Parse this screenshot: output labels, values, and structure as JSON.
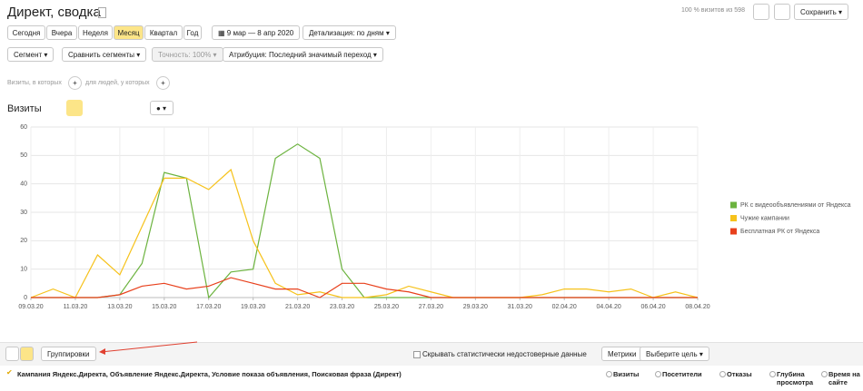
{
  "header": {
    "title": "Директ, сводка",
    "sample": "100 % визитов из 598",
    "save": "Сохранить"
  },
  "periods": [
    "Сегодня",
    "Вчера",
    "Неделя",
    "Месяц",
    "Квартал",
    "Год"
  ],
  "date_range": "9 мар — 8 апр 2020",
  "detail": "Детализация: по дням",
  "filters": {
    "segment": "Сегмент",
    "compare": "Сравнить сегменты",
    "accuracy": "Точность: 100%",
    "attribution": "Атрибуция: Последний значимый переход"
  },
  "conditions": [
    "Визиты, в которых",
    "для людей, у которых"
  ],
  "chart_heading": "Визиты",
  "chart_data": {
    "type": "line",
    "categories": [
      "09.03.20",
      null,
      "11.03.20",
      null,
      "13.03.20",
      null,
      "15.03.20",
      null,
      "17.03.20",
      null,
      "19.03.20",
      null,
      "21.03.20",
      null,
      "23.03.20",
      null,
      "25.03.20",
      null,
      "27.03.20",
      null,
      "29.03.20",
      null,
      "31.03.20",
      null,
      "02.04.20",
      null,
      "04.04.20",
      null,
      "06.04.20",
      null,
      "08.04.20"
    ],
    "label_colors": [
      "#555",
      null,
      "#555",
      null,
      "#555",
      null,
      "#e03030",
      null,
      "#555",
      null,
      "#555",
      null,
      "#e03030",
      null,
      "#555",
      null,
      "#555",
      null,
      "#555",
      null,
      "#e03030",
      null,
      "#555",
      null,
      "#555",
      null,
      "#e03030",
      null,
      "#555",
      null,
      "#555"
    ],
    "series": [
      {
        "name": "РК с видеообъявлениями от Яндекса",
        "color": "#6cb33f",
        "values": [
          0,
          0,
          0,
          0,
          1,
          12,
          44,
          42,
          0,
          9,
          10,
          49,
          54,
          49,
          10,
          0,
          0,
          0,
          0,
          0,
          0,
          0,
          0,
          0,
          0,
          0,
          0,
          0,
          0,
          0,
          0
        ]
      },
      {
        "name": "Чужие кампании",
        "color": "#f6c21b",
        "values": [
          0,
          3,
          0,
          15,
          8,
          25,
          42,
          42,
          38,
          45,
          20,
          5,
          1,
          2,
          0,
          0,
          1,
          4,
          2,
          0,
          0,
          0,
          0,
          1,
          3,
          3,
          2,
          3,
          0,
          2,
          0
        ]
      },
      {
        "name": "Бесплатная РК от Яндекса",
        "color": "#e8401c",
        "values": [
          0,
          0,
          0,
          0,
          1,
          4,
          5,
          3,
          4,
          7,
          5,
          3,
          3,
          0,
          5,
          5,
          3,
          2,
          0,
          0,
          0,
          0,
          0,
          0,
          0,
          0,
          0,
          0,
          0,
          0,
          0
        ]
      }
    ],
    "ylim": [
      0,
      60
    ],
    "yticks": [
      0,
      10,
      20,
      30,
      40,
      50,
      60
    ],
    "grid": true
  },
  "bottom": {
    "groupings": "Группировки",
    "hide": "Скрывать статистически недостоверные данные",
    "metrics": "Метрики",
    "goal": "Выберите цель"
  },
  "table": {
    "dimensions": "Кампания Яндекс.Директа, Объявление Яндекс.Директа, Условие показа объявления, Поисковая фраза (Директ)",
    "columns": [
      "Визиты",
      "Посетители",
      "Отказы",
      "Глубина просмотра",
      "Время на сайте"
    ]
  }
}
